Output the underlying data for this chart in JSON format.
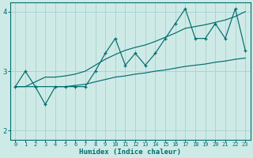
{
  "title": "",
  "xlabel": "Humidex (Indice chaleur)",
  "ylabel": "",
  "bg_color": "#ceeae7",
  "grid_color": "#add4d0",
  "line_color": "#006e6e",
  "xlim": [
    -0.5,
    23.5
  ],
  "ylim": [
    1.85,
    4.15
  ],
  "yticks": [
    2,
    3,
    4
  ],
  "xticks": [
    0,
    1,
    2,
    3,
    4,
    5,
    6,
    7,
    8,
    9,
    10,
    11,
    12,
    13,
    14,
    15,
    16,
    17,
    18,
    19,
    20,
    21,
    22,
    23
  ],
  "x": [
    0,
    1,
    2,
    3,
    4,
    5,
    6,
    7,
    8,
    9,
    10,
    11,
    12,
    13,
    14,
    15,
    16,
    17,
    18,
    19,
    20,
    21,
    22,
    23
  ],
  "main_y": [
    2.74,
    3.0,
    2.74,
    2.44,
    2.74,
    2.74,
    2.74,
    2.74,
    3.0,
    3.3,
    3.55,
    3.1,
    3.3,
    3.1,
    3.3,
    3.55,
    3.8,
    4.05,
    3.55,
    3.55,
    3.8,
    3.55,
    4.05,
    3.35
  ],
  "upper_y": [
    2.74,
    2.74,
    2.82,
    2.9,
    2.9,
    2.92,
    2.95,
    3.0,
    3.1,
    3.2,
    3.28,
    3.35,
    3.4,
    3.44,
    3.5,
    3.57,
    3.64,
    3.72,
    3.75,
    3.78,
    3.82,
    3.86,
    3.92,
    4.0
  ],
  "lower_y": [
    2.74,
    2.74,
    2.74,
    2.74,
    2.74,
    2.74,
    2.76,
    2.78,
    2.82,
    2.86,
    2.9,
    2.92,
    2.95,
    2.97,
    3.0,
    3.02,
    3.05,
    3.08,
    3.1,
    3.12,
    3.15,
    3.17,
    3.2,
    3.22
  ],
  "figwidth": 3.2,
  "figheight": 2.0,
  "dpi": 100
}
